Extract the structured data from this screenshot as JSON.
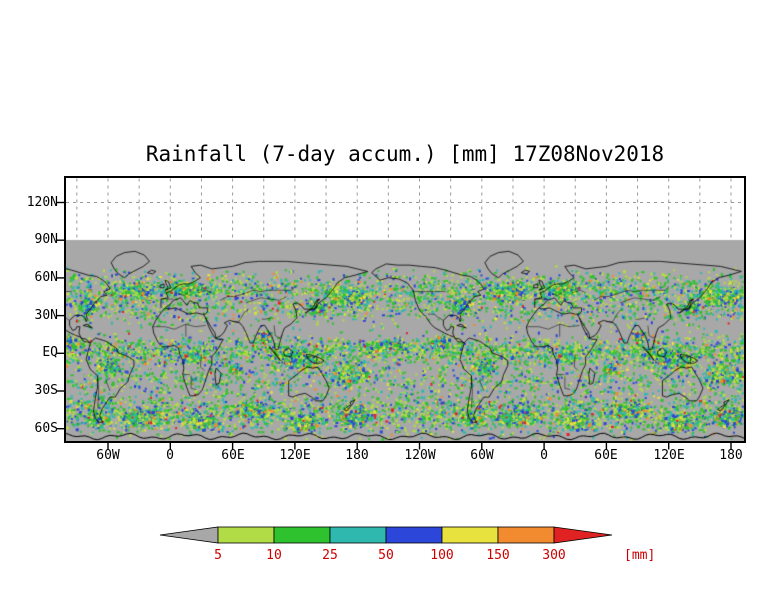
{
  "title": "Rainfall (7-day accum.) [mm] 17Z08Nov2018",
  "axes": {
    "lat_labels": [
      "120N",
      "90N",
      "60N",
      "30N",
      "EQ",
      "30S",
      "60S"
    ],
    "lon_labels": [
      "60W",
      "0",
      "60E",
      "120E",
      "180",
      "120W",
      "60W",
      "0",
      "60E",
      "120E",
      "180"
    ]
  },
  "colorbar": {
    "tick_labels": [
      "5",
      "10",
      "25",
      "50",
      "100",
      "150",
      "300"
    ],
    "unit_label": "[mm]",
    "label_color": "#cc0000",
    "colors": [
      "#a8a8a8",
      "#b2dc46",
      "#2ec22e",
      "#2eb8ae",
      "#2b46d8",
      "#e8e23e",
      "#f28a30",
      "#e02222"
    ]
  },
  "map": {
    "plot_bg": "#ffffff",
    "no_data_gray": "#a8a8a8",
    "coastline_color": "#000000",
    "grid_color": "#999999"
  },
  "chart_data": {
    "type": "heatmap",
    "title": "Rainfall (7-day accum.) [mm] 17Z08Nov2018",
    "variable": "7-day accumulated rainfall",
    "valid_time": "17Z08Nov2018",
    "units": "mm",
    "projection": "global lat-lon, longitudes wrapped ~1.8 cycles",
    "lat_tick_labels": [
      "120N",
      "90N",
      "60N",
      "30N",
      "EQ",
      "30S",
      "60S"
    ],
    "lon_tick_labels": [
      "60W",
      "0",
      "60E",
      "120E",
      "180",
      "120W",
      "60W",
      "0",
      "60E",
      "120E",
      "180"
    ],
    "color_scale": {
      "thresholds_mm": [
        5,
        10,
        25,
        50,
        100,
        150,
        300
      ],
      "colors": [
        "#a8a8a8",
        "#b2dc46",
        "#2ec22e",
        "#2eb8ae",
        "#2b46d8",
        "#e8e23e",
        "#f28a30",
        "#e02222"
      ],
      "below_min_color": "#a8a8a8",
      "above_max_color": "#e02222"
    },
    "legend_position": "bottom",
    "grid": "dashed"
  }
}
